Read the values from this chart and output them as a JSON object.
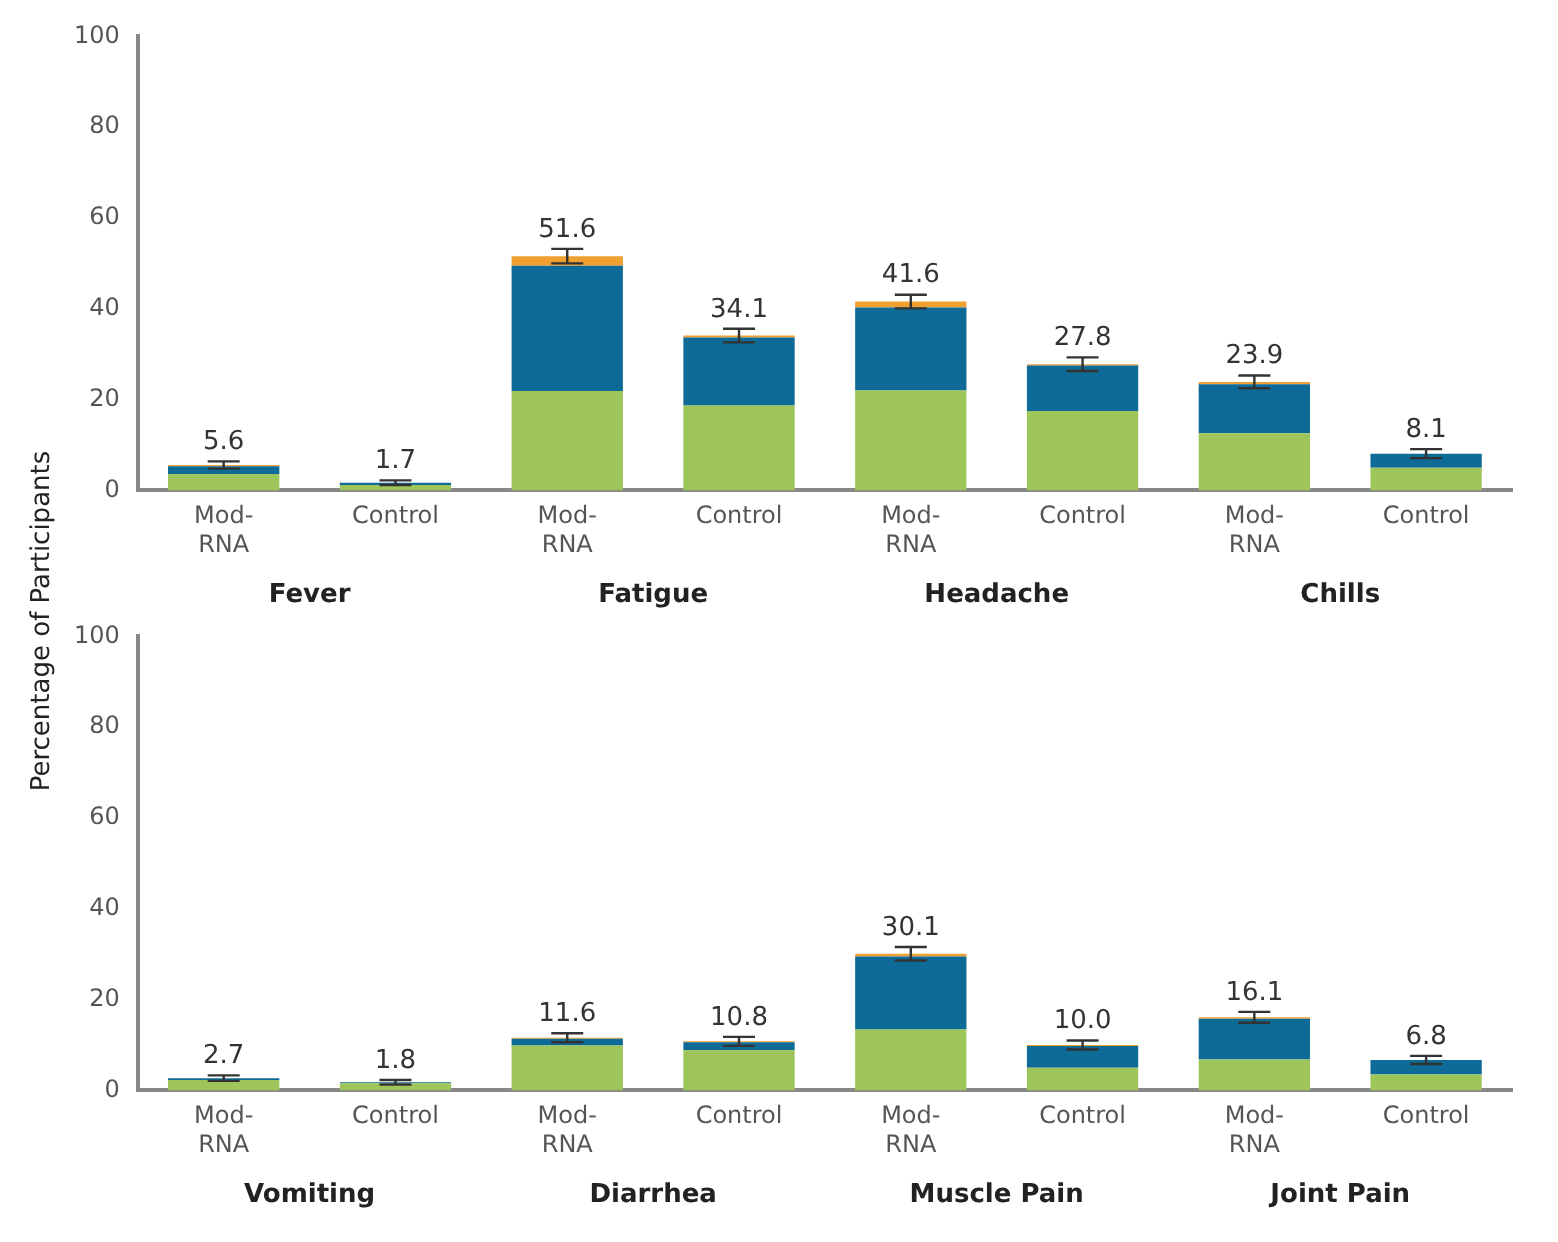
{
  "chart_data": [
    {
      "type": "bar",
      "ylabel": "Percentage of Participants",
      "categories": [
        "Mod-RNA",
        "Control",
        "Mod-RNA",
        "Control",
        "Mod-RNA",
        "Control",
        "Mod-RNA",
        "Control"
      ],
      "stacked": true,
      "ylim": [
        0,
        100
      ],
      "yticks": [
        0,
        20,
        40,
        60,
        80,
        100
      ],
      "grid": false,
      "legend": false,
      "series": [
        {
          "color": "#9dc55a",
          "values": [
            3.6,
            1.2,
            21.9,
            18.7,
            22.0,
            17.5,
            12.6,
            5.0
          ]
        },
        {
          "color": "#0e6a96",
          "values": [
            1.7,
            0.5,
            27.6,
            15.0,
            18.3,
            10.0,
            10.8,
            3.1
          ]
        },
        {
          "color": "#f0a030",
          "values": [
            0.3,
            0,
            2.1,
            0.4,
            1.3,
            0.3,
            0.5,
            0
          ],
          "errors": [
            0.8,
            0.5,
            1.6,
            1.5,
            1.5,
            1.5,
            1.4,
            1.0
          ]
        }
      ],
      "totals": [
        "5.6",
        "1.7",
        "51.6",
        "34.1",
        "41.6",
        "27.8",
        "23.9",
        "8.1"
      ],
      "annotations": [
        "Fever",
        "Fatigue",
        "Headache",
        "Chills"
      ]
    },
    {
      "type": "bar",
      "categories": [
        "Mod-RNA",
        "Control",
        "Mod-RNA",
        "Control",
        "Mod-RNA",
        "Control",
        "Mod-RNA",
        "Control"
      ],
      "stacked": true,
      "ylim": [
        0,
        100
      ],
      "yticks": [
        0,
        20,
        40,
        60,
        80,
        100
      ],
      "grid": false,
      "legend": false,
      "series": [
        {
          "color": "#9dc55a",
          "values": [
            2.3,
            1.6,
            9.9,
            8.9,
            13.4,
            5.0,
            6.8,
            3.5
          ]
        },
        {
          "color": "#0e6a96",
          "values": [
            0.4,
            0.2,
            1.5,
            1.7,
            16.1,
            4.8,
            9.0,
            3.2
          ]
        },
        {
          "color": "#f0a030",
          "values": [
            0,
            0,
            0.2,
            0.2,
            0.6,
            0.2,
            0.3,
            0
          ],
          "errors": [
            0.6,
            0.5,
            1.0,
            1.0,
            1.5,
            1.0,
            1.2,
            0.9
          ]
        }
      ],
      "totals": [
        "2.7",
        "1.8",
        "11.6",
        "10.8",
        "30.1",
        "10.0",
        "16.1",
        "6.8"
      ],
      "annotations": [
        "Vomiting",
        "Diarrhea",
        "Muscle Pain",
        "Joint Pain"
      ]
    }
  ]
}
